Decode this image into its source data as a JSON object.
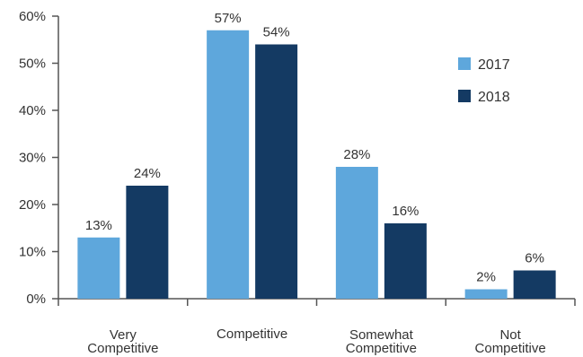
{
  "chart_data": {
    "type": "bar",
    "categories": [
      [
        "Very",
        "Competitive"
      ],
      [
        "Competitive"
      ],
      [
        "Somewhat",
        "Competitive"
      ],
      [
        "Not",
        "Competitive"
      ]
    ],
    "series": [
      {
        "name": "2017",
        "color": "#5ea7dc",
        "values": [
          13,
          57,
          28,
          2
        ],
        "labels": [
          "13%",
          "57%",
          "28%",
          "2%"
        ]
      },
      {
        "name": "2018",
        "color": "#143a63",
        "values": [
          24,
          54,
          16,
          6
        ],
        "labels": [
          "24%",
          "54%",
          "16%",
          "6%"
        ]
      }
    ],
    "y_ticks": [
      "0%",
      "10%",
      "20%",
      "30%",
      "40%",
      "50%",
      "60%"
    ],
    "ylim": [
      0,
      60
    ],
    "grid": false,
    "legend_position": "top-right",
    "axis_color": "#555555"
  }
}
